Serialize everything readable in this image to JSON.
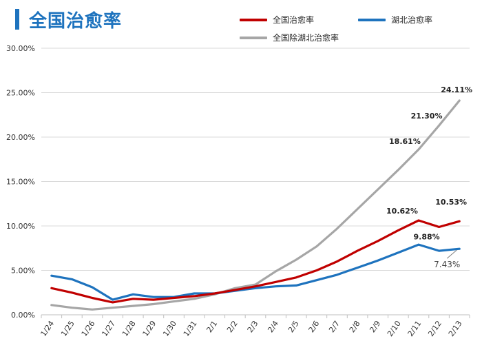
{
  "chart_data": {
    "type": "line",
    "title": "全国治愈率",
    "categories": [
      "1/24",
      "1/25",
      "1/26",
      "1/27",
      "1/28",
      "1/29",
      "1/30",
      "1/31",
      "2/1",
      "2/2",
      "2/3",
      "2/4",
      "2/5",
      "2/6",
      "2/7",
      "2/8",
      "2/9",
      "2/10",
      "2/11",
      "2/12",
      "2/13"
    ],
    "ylim": [
      0,
      30
    ],
    "yticks": [
      "0.00%",
      "5.00%",
      "10.00%",
      "15.00%",
      "20.00%",
      "25.00%",
      "30.00%"
    ],
    "grid": true,
    "legend_position": "top-right",
    "series": [
      {
        "name": "全国治愈率",
        "color": "#c00000",
        "values": [
          3.0,
          2.5,
          1.9,
          1.4,
          1.8,
          1.7,
          1.9,
          2.1,
          2.4,
          2.8,
          3.2,
          3.7,
          4.2,
          5.0,
          6.0,
          7.2,
          8.3,
          9.5,
          10.62,
          9.88,
          10.53
        ]
      },
      {
        "name": "湖北治愈率",
        "color": "#1e73be",
        "values": [
          4.4,
          4.0,
          3.1,
          1.7,
          2.3,
          2.0,
          2.0,
          2.4,
          2.4,
          2.7,
          3.0,
          3.2,
          3.3,
          3.9,
          4.5,
          5.3,
          6.1,
          7.0,
          7.9,
          7.2,
          7.43
        ]
      },
      {
        "name": "全国除湖北治愈率",
        "color": "#a6a6a6",
        "values": [
          1.1,
          0.8,
          0.6,
          0.8,
          1.0,
          1.2,
          1.5,
          1.8,
          2.3,
          3.0,
          3.4,
          4.9,
          6.2,
          7.7,
          9.7,
          11.9,
          14.1,
          16.3,
          18.61,
          21.3,
          24.11
        ]
      }
    ],
    "annotations": [
      {
        "text": "24.11%",
        "series": 2,
        "index": 20
      },
      {
        "text": "21.30%",
        "series": 2,
        "index": 19
      },
      {
        "text": "18.61%",
        "series": 2,
        "index": 18
      },
      {
        "text": "10.62%",
        "series": 0,
        "index": 18
      },
      {
        "text": "10.53%",
        "series": 0,
        "index": 20
      },
      {
        "text": "9.88%",
        "series": 0,
        "index": 19
      },
      {
        "text": "7.43%",
        "series": 1,
        "index": 20
      }
    ]
  }
}
